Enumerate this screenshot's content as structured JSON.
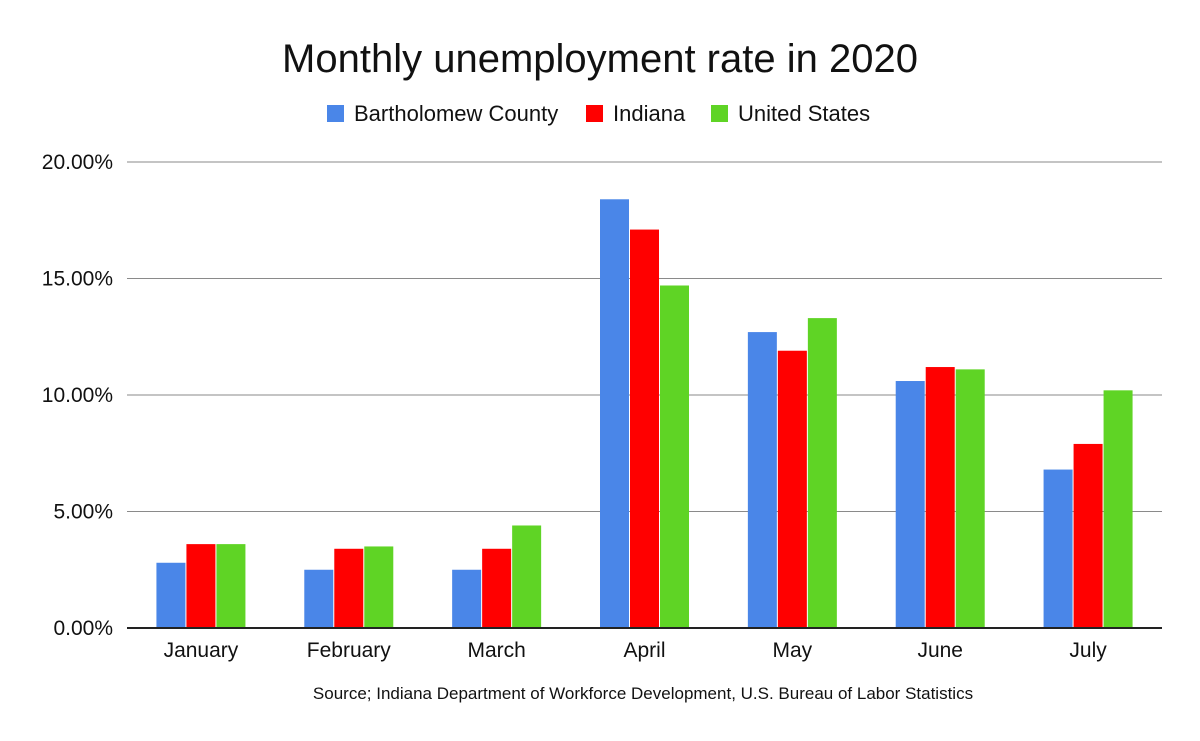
{
  "chart_data": {
    "type": "bar",
    "title": "Monthly unemployment rate in 2020",
    "categories": [
      "January",
      "February",
      "March",
      "April",
      "May",
      "June",
      "July"
    ],
    "series": [
      {
        "name": "Bartholomew County",
        "color": "#4a86e8",
        "values": [
          2.8,
          2.5,
          2.5,
          18.4,
          12.7,
          10.6,
          6.8
        ]
      },
      {
        "name": "Indiana",
        "color": "#ff0000",
        "values": [
          3.6,
          3.4,
          3.4,
          17.1,
          11.9,
          11.2,
          7.9
        ]
      },
      {
        "name": "United States",
        "color": "#5fd425",
        "values": [
          3.6,
          3.5,
          4.4,
          14.7,
          13.3,
          11.1,
          10.2
        ]
      }
    ],
    "ylim": [
      0,
      20
    ],
    "yticks": [
      0,
      5,
      10,
      15,
      20
    ],
    "ytick_labels": [
      "0.00%",
      "5.00%",
      "10.00%",
      "15.00%",
      "20.00%"
    ],
    "grid": true,
    "legend_position": "top-center",
    "source": "Source; Indiana Department of Workforce Development, U.S. Bureau of Labor Statistics"
  }
}
